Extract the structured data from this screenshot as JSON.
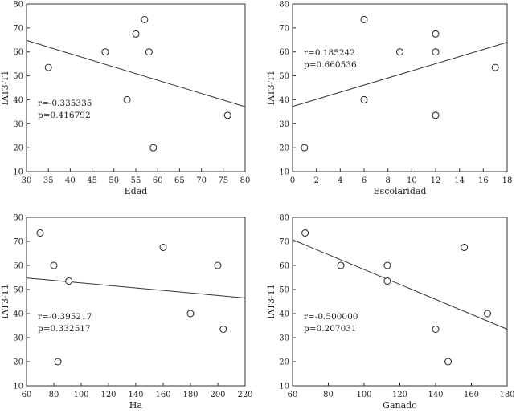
{
  "chart_data": [
    {
      "type": "scatter",
      "xlabel": "Edad",
      "ylabel": "IAT3-T1",
      "xlim": [
        30,
        80
      ],
      "ylim": [
        10,
        80
      ],
      "xticks": [
        30,
        35,
        40,
        45,
        50,
        55,
        60,
        65,
        70,
        75,
        80
      ],
      "yticks": [
        10,
        20,
        30,
        40,
        50,
        60,
        70,
        80
      ],
      "x": [
        35,
        48,
        53,
        55,
        57,
        58,
        59,
        76
      ],
      "y": [
        53.5,
        60,
        40,
        67.5,
        73.5,
        60,
        20,
        33.5
      ],
      "fit_line": [
        [
          30,
          64.8
        ],
        [
          80,
          37.1
        ]
      ],
      "r_text": "r=-0.335335",
      "p_text": "p=0.416792",
      "stats_position": "bottom-left"
    },
    {
      "type": "scatter",
      "xlabel": "Escolaridad",
      "ylabel": "IAT3-T1",
      "xlim": [
        0,
        18
      ],
      "ylim": [
        10,
        80
      ],
      "xticks": [
        0,
        2,
        4,
        6,
        8,
        10,
        12,
        14,
        16,
        18
      ],
      "yticks": [
        10,
        20,
        30,
        40,
        50,
        60,
        70,
        80
      ],
      "x": [
        1,
        6,
        6,
        9,
        12,
        12,
        12,
        17
      ],
      "y": [
        20,
        73.5,
        40,
        60,
        67.5,
        60,
        33.5,
        53.5
      ],
      "fit_line": [
        [
          0,
          37.2
        ],
        [
          18,
          64
        ]
      ],
      "r_text": "r=0.185242",
      "p_text": "p=0.660536",
      "stats_position": "top-left"
    },
    {
      "type": "scatter",
      "xlabel": "Ha",
      "ylabel": "IAT3-T1",
      "xlim": [
        60,
        220
      ],
      "ylim": [
        10,
        80
      ],
      "xticks": [
        60,
        80,
        100,
        120,
        140,
        160,
        180,
        200,
        220
      ],
      "yticks": [
        10,
        20,
        30,
        40,
        50,
        60,
        70,
        80
      ],
      "x": [
        70,
        80,
        83,
        91,
        160,
        180,
        200,
        204
      ],
      "y": [
        73.5,
        60,
        20,
        53.5,
        67.5,
        40,
        60,
        33.5
      ],
      "fit_line": [
        [
          60,
          54.8
        ],
        [
          220,
          46.5
        ]
      ],
      "r_text": "r=-0.395217",
      "p_text": "p=0.332517",
      "stats_position": "bottom-left"
    },
    {
      "type": "scatter",
      "xlabel": "Ganado",
      "ylabel": "IAT3-T1",
      "xlim": [
        60,
        180
      ],
      "ylim": [
        10,
        80
      ],
      "xticks": [
        60,
        80,
        100,
        120,
        140,
        160,
        180
      ],
      "yticks": [
        10,
        20,
        30,
        40,
        50,
        60,
        70,
        80
      ],
      "x": [
        67,
        87,
        113,
        113,
        140,
        147,
        156,
        169
      ],
      "y": [
        73.5,
        60,
        60,
        53.5,
        33.5,
        20,
        67.5,
        40
      ],
      "fit_line": [
        [
          60,
          70.7
        ],
        [
          180,
          33.5
        ]
      ],
      "r_text": "r=-0.500000",
      "p_text": "p=0.207031",
      "stats_position": "bottom-left"
    }
  ]
}
